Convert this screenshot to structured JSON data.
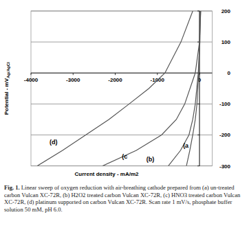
{
  "chart_data": {
    "type": "line",
    "xlabel": "Current density - mA/m2",
    "ylabel": "Potential - mV",
    "ylabel_sub": "Ag/AgCl",
    "xlim": [
      -4000,
      300
    ],
    "ylim": [
      -300,
      200
    ],
    "xticks": [
      -4000,
      -3000,
      -2000,
      -1000,
      0
    ],
    "yticks": [
      -300,
      -200,
      -100,
      0,
      100,
      200
    ],
    "grid": true,
    "series": [
      {
        "color": "#555555",
        "x": [
          -310,
          -230,
          -160,
          -100,
          -60,
          -20,
          0,
          10
        ],
        "values": [
          -300,
          -250,
          -200,
          -150,
          -100,
          0,
          100,
          200
        ]
      },
      {
        "color": "#555555",
        "x": [
          -740,
          -450,
          -250,
          -160,
          -100,
          -30,
          10,
          25
        ],
        "values": [
          -300,
          -250,
          -200,
          -150,
          -100,
          0,
          100,
          200
        ]
      },
      {
        "color": "#555555",
        "x": [
          -2300,
          -1500,
          -900,
          -550,
          -350,
          -100,
          0,
          30
        ],
        "values": [
          -300,
          -250,
          -200,
          -150,
          -100,
          0,
          100,
          200
        ]
      },
      {
        "color": "#555555",
        "x": [
          -3850,
          -3250,
          -2700,
          -2150,
          -1670,
          -1200,
          -820,
          -440,
          -160
        ],
        "values": [
          -300,
          -250,
          -200,
          -150,
          -100,
          -50,
          0,
          100,
          200
        ]
      }
    ],
    "annotations": [
      {
        "text": "(a",
        "x": -390,
        "y": -240
      },
      {
        "text": "(b)",
        "x": -1260,
        "y": -285
      },
      {
        "text": "(c",
        "x": -1840,
        "y": -276
      },
      {
        "text": "(d)",
        "x": -3560,
        "y": -231
      }
    ],
    "caption_label": "Fig. 1.",
    "caption": "Linear sweep of oxygen reduction with air-breathing cathode prepared from (a) un-treated carbon Vulcan XC-72R, (b) H2O2 treated carbon Vulcan XC-72R, (c) HNO3 treated carbon Vulcan XC-72R, (d) platinum supported on carbon Vulcan XC-72R. Scan rate 1 mV/s, phosphate buffer solution 50 mM, pH 6.0."
  }
}
